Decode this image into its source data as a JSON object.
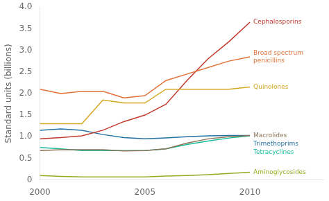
{
  "chart_data": {
    "type": "line",
    "x": [
      2000,
      2001,
      2002,
      2003,
      2004,
      2005,
      2006,
      2007,
      2008,
      2009,
      2010
    ],
    "series": [
      {
        "name": "Broad spectrum\npenicillins",
        "color": "#e07035",
        "values": [
          2.1,
          2.0,
          2.05,
          2.05,
          1.9,
          1.95,
          2.3,
          2.45,
          2.6,
          2.75,
          2.85
        ]
      },
      {
        "name": "Quinolones",
        "color": "#d4a820",
        "values": [
          1.3,
          1.3,
          1.3,
          1.85,
          1.78,
          1.78,
          2.1,
          2.1,
          2.1,
          2.1,
          2.15
        ]
      },
      {
        "name": "Cephalosporins",
        "color": "#c0392b",
        "values": [
          0.95,
          0.98,
          1.02,
          1.15,
          1.35,
          1.5,
          1.75,
          2.3,
          2.8,
          3.2,
          3.65
        ]
      },
      {
        "name": "Macrolides",
        "color": "#8B7355",
        "values": [
          0.68,
          0.7,
          0.7,
          0.7,
          0.67,
          0.68,
          0.72,
          0.85,
          0.95,
          1.0,
          1.03
        ]
      },
      {
        "name": "Tetracyclines",
        "color": "#1abc9c",
        "values": [
          0.75,
          0.72,
          0.68,
          0.68,
          0.68,
          0.68,
          0.72,
          0.82,
          0.9,
          0.97,
          1.02
        ]
      },
      {
        "name": "Trimethoprims",
        "color": "#2471a3",
        "values": [
          1.15,
          1.18,
          1.15,
          1.05,
          0.98,
          0.95,
          0.97,
          1.0,
          1.02,
          1.03,
          1.03
        ]
      },
      {
        "name": "Aminoglycosides",
        "color": "#9aaa20",
        "values": [
          0.1,
          0.08,
          0.07,
          0.07,
          0.07,
          0.07,
          0.09,
          0.1,
          0.12,
          0.15,
          0.18
        ]
      }
    ],
    "xlim": [
      2000,
      2013.5
    ],
    "xticks": [
      2000,
      2005,
      2010
    ],
    "ylim": [
      0,
      4.0
    ],
    "yticks": [
      0,
      0.5,
      {
        "value": 1,
        "label": "1.0"
      },
      1.5,
      {
        "value": 2,
        "label": "2.0"
      },
      2.5,
      {
        "value": 3,
        "label": "3.0"
      },
      3.5,
      {
        "value": 4,
        "label": "4.0"
      }
    ],
    "ylabel": "Standard units (billions)",
    "grid": false
  }
}
